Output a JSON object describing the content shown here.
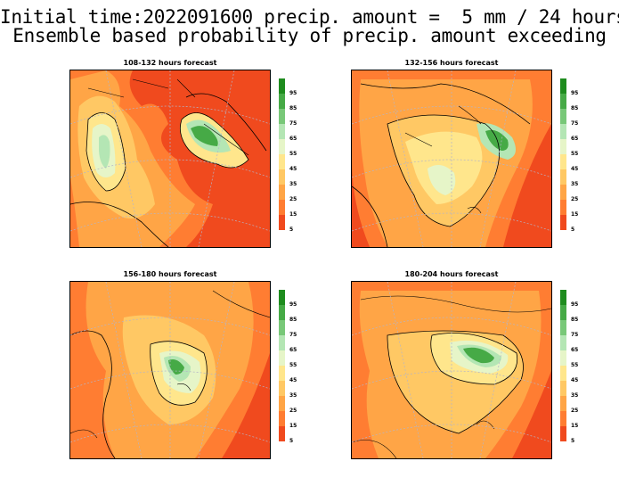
{
  "header": {
    "line1": "Initial time:2022091600 precip. amount =  5 mm / 24 hours",
    "line2": "Ensemble based probability of precip. amount exceeding"
  },
  "panels": [
    {
      "title": "108-132 hours forecast"
    },
    {
      "title": "132-156 hours forecast"
    },
    {
      "title": "156-180 hours forecast"
    },
    {
      "title": "180-204 hours forecast"
    }
  ],
  "legend": {
    "labels": [
      "95",
      "85",
      "75",
      "65",
      "55",
      "45",
      "35",
      "25",
      "15",
      "5"
    ],
    "colors": [
      "#1e8c1e",
      "#46aa46",
      "#78c878",
      "#b4e6b4",
      "#e6f5c8",
      "#ffe68c",
      "#ffc864",
      "#ffa546",
      "#ff7d32",
      "#f04a1e"
    ]
  },
  "colors": {
    "background_low": "#f04a1e",
    "contour": "#000000",
    "grid": "#b4b4c8"
  }
}
